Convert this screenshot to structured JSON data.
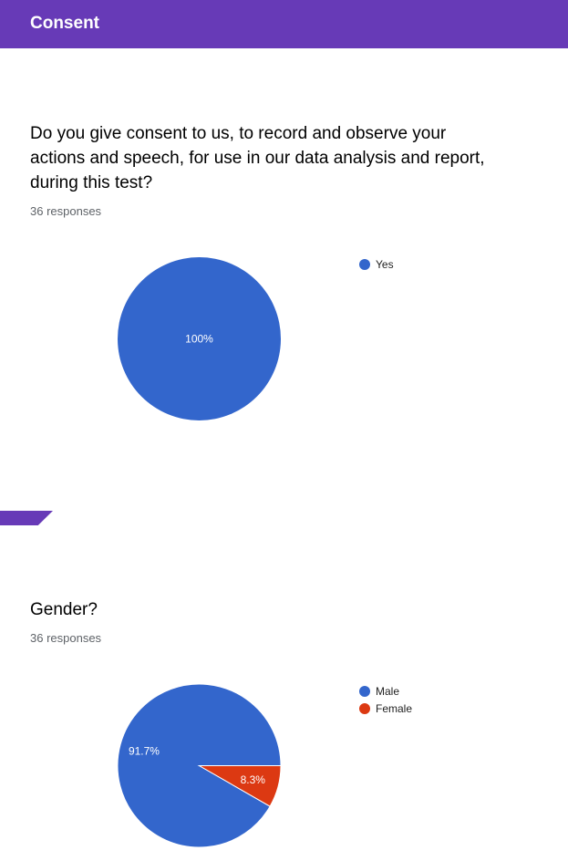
{
  "header": {
    "title": "Consent"
  },
  "questions": [
    {
      "question": "Do you give consent to us, to record and observe your actions and speech, for use in our data analysis and report, during this test?",
      "responses": "36 responses",
      "chart_data": {
        "type": "pie",
        "categories": [
          "Yes"
        ],
        "values": [
          100
        ],
        "labels": [
          "100%"
        ],
        "colors": [
          "#3366cc"
        ],
        "legend_position": "right"
      }
    },
    {
      "question": "Gender?",
      "responses": "36 responses",
      "chart_data": {
        "type": "pie",
        "categories": [
          "Male",
          "Female"
        ],
        "values": [
          91.7,
          8.3
        ],
        "labels": [
          "91.7%",
          "8.3%"
        ],
        "colors": [
          "#3366cc",
          "#dc3912"
        ],
        "legend_position": "right"
      }
    }
  ]
}
